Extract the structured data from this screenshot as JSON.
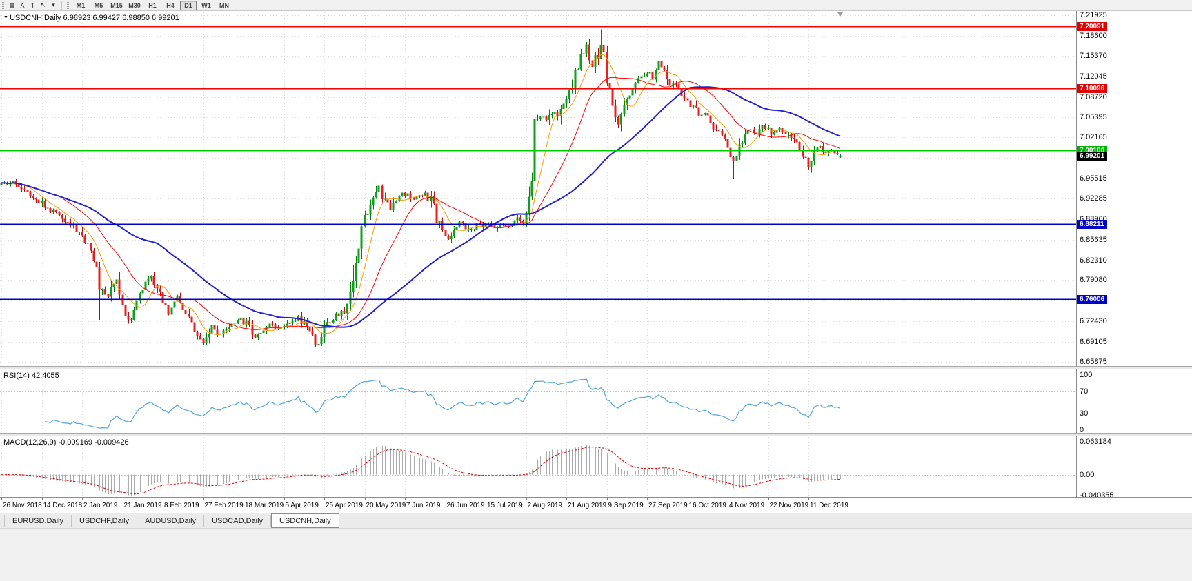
{
  "toolbar": {
    "tool_icons": [
      {
        "name": "charts-grid-icon",
        "glyph": "▦"
      },
      {
        "name": "font-tool-button",
        "glyph": "A"
      },
      {
        "name": "text-tool-button",
        "glyph": "T"
      },
      {
        "name": "cursor-tool-button",
        "glyph": "↖"
      },
      {
        "name": "tool-dropdown-icon",
        "glyph": "▾"
      }
    ],
    "timeframes": [
      "M1",
      "M5",
      "M15",
      "M30",
      "H1",
      "H4",
      "D1",
      "W1",
      "MN"
    ],
    "active_timeframe": "D1"
  },
  "chart": {
    "dropdown_glyph": "▼",
    "header": "USDCNH,Daily 6.98923 6.99427 6.98850 6.99201"
  },
  "rsi_panel": {
    "display": "RSI(14) 42.4055"
  },
  "macd_panel": {
    "display": "MACD(12,26,9) -0.009169 -0.009426"
  },
  "tabs": {
    "items": [
      {
        "label": "EURUSD,Daily",
        "active": false
      },
      {
        "label": "USDCHF,Daily",
        "active": false
      },
      {
        "label": "AUDUSD,Daily",
        "active": false
      },
      {
        "label": "USDCAD,Daily",
        "active": false
      },
      {
        "label": "USDCNH,Daily",
        "active": true
      }
    ]
  },
  "chart_data": {
    "type": "candlestick",
    "symbol": "USDCNH",
    "timeframe": "Daily",
    "current_ohlc": {
      "open": 6.98923,
      "high": 6.99427,
      "low": 6.9885,
      "close": 6.99201
    },
    "bars": 292,
    "price_range": [
      6.65875,
      7.21925
    ],
    "price_axis_labels": [
      "7.21925",
      "7.18600",
      "7.15370",
      "7.12045",
      "7.08720",
      "7.05395",
      "7.02165",
      "6.98840",
      "6.95515",
      "6.92285",
      "6.88960",
      "6.85635",
      "6.82310",
      "6.79080",
      "6.75755",
      "6.72430",
      "6.69105",
      "6.65875"
    ],
    "date_labels": [
      "26 Nov 2018",
      "14 Dec 2018",
      "2 Jan 2019",
      "21 Jan 2019",
      "8 Feb 2019",
      "27 Feb 2019",
      "18 Mar 2019",
      "5 Apr 2019",
      "25 Apr 2019",
      "20 May 2019",
      "7 Jun 2019",
      "26 Jun 2019",
      "15 Jul 2019",
      "2 Aug 2019",
      "21 Aug 2019",
      "9 Sep 2019",
      "27 Sep 2019",
      "16 Oct 2019",
      "4 Nov 2019",
      "22 Nov 2019",
      "11 Dec 2019"
    ],
    "horizontal_levels": [
      {
        "label": "7.20091",
        "price": 7.20091,
        "color": "#FF0000",
        "badge": "#E00000",
        "current": false
      },
      {
        "label": "7.10096",
        "price": 7.10096,
        "color": "#FF0000",
        "badge": "#E00000",
        "current": false
      },
      {
        "label": "7.00100",
        "price": 7.001,
        "color": "#00CC00",
        "badge": "#00B000",
        "current": false
      },
      {
        "label": "6.99201",
        "price": 6.99201,
        "color": "#BDBDBD",
        "badge": "#000000",
        "current": true
      },
      {
        "label": "6.88211",
        "price": 6.88211,
        "color": "#0000CC",
        "badge": "#0000CC",
        "current": false
      },
      {
        "label": "6.76006",
        "price": 6.76006,
        "color": "#0000CC",
        "badge": "#0000CC",
        "current": false
      }
    ],
    "candle_colors": {
      "up_fill": "#0EA01A",
      "up_stroke": "#067B10",
      "down_fill": "#EA1F1F",
      "down_stroke": "#B01010"
    },
    "moving_averages": [
      {
        "period": 8,
        "color": "#FF9900",
        "width": 1
      },
      {
        "period": 21,
        "color": "#FF0000",
        "width": 1
      },
      {
        "period": 55,
        "color": "#2121CC",
        "width": 2
      }
    ],
    "close_keypoints": [
      [
        0,
        6.945
      ],
      [
        5,
        6.948
      ],
      [
        8,
        6.938
      ],
      [
        12,
        6.925
      ],
      [
        16,
        6.905
      ],
      [
        20,
        6.898
      ],
      [
        24,
        6.882
      ],
      [
        28,
        6.862
      ],
      [
        31,
        6.845
      ],
      [
        34,
        6.782
      ],
      [
        37,
        6.765
      ],
      [
        40,
        6.792
      ],
      [
        43,
        6.738
      ],
      [
        45,
        6.728
      ],
      [
        48,
        6.772
      ],
      [
        52,
        6.795
      ],
      [
        55,
        6.768
      ],
      [
        58,
        6.735
      ],
      [
        61,
        6.768
      ],
      [
        64,
        6.74
      ],
      [
        67,
        6.702
      ],
      [
        70,
        6.688
      ],
      [
        73,
        6.715
      ],
      [
        76,
        6.7
      ],
      [
        79,
        6.714
      ],
      [
        82,
        6.728
      ],
      [
        85,
        6.72
      ],
      [
        88,
        6.7
      ],
      [
        91,
        6.713
      ],
      [
        94,
        6.719
      ],
      [
        97,
        6.713
      ],
      [
        100,
        6.723
      ],
      [
        103,
        6.731
      ],
      [
        106,
        6.714
      ],
      [
        109,
        6.687
      ],
      [
        111,
        6.702
      ],
      [
        113,
        6.72
      ],
      [
        116,
        6.733
      ],
      [
        119,
        6.742
      ],
      [
        121,
        6.768
      ],
      [
        123,
        6.828
      ],
      [
        125,
        6.882
      ],
      [
        127,
        6.905
      ],
      [
        129,
        6.922
      ],
      [
        131,
        6.94
      ],
      [
        133,
        6.918
      ],
      [
        135,
        6.905
      ],
      [
        137,
        6.923
      ],
      [
        139,
        6.933
      ],
      [
        141,
        6.927
      ],
      [
        143,
        6.919
      ],
      [
        145,
        6.929
      ],
      [
        147,
        6.933
      ],
      [
        149,
        6.918
      ],
      [
        151,
        6.893
      ],
      [
        153,
        6.873
      ],
      [
        155,
        6.858
      ],
      [
        157,
        6.874
      ],
      [
        159,
        6.884
      ],
      [
        161,
        6.878
      ],
      [
        163,
        6.87
      ],
      [
        165,
        6.88
      ],
      [
        167,
        6.876
      ],
      [
        169,
        6.882
      ],
      [
        171,
        6.877
      ],
      [
        173,
        6.882
      ],
      [
        175,
        6.877
      ],
      [
        177,
        6.884
      ],
      [
        179,
        6.889
      ],
      [
        181,
        6.886
      ],
      [
        183,
        6.905
      ],
      [
        185,
        7.048
      ],
      [
        187,
        7.058
      ],
      [
        189,
        7.046
      ],
      [
        191,
        7.062
      ],
      [
        193,
        7.056
      ],
      [
        195,
        7.082
      ],
      [
        197,
        7.095
      ],
      [
        199,
        7.128
      ],
      [
        201,
        7.152
      ],
      [
        203,
        7.168
      ],
      [
        205,
        7.14
      ],
      [
        207,
        7.158
      ],
      [
        208,
        7.175
      ],
      [
        210,
        7.12
      ],
      [
        212,
        7.06
      ],
      [
        214,
        7.042
      ],
      [
        216,
        7.068
      ],
      [
        218,
        7.092
      ],
      [
        220,
        7.105
      ],
      [
        222,
        7.118
      ],
      [
        224,
        7.128
      ],
      [
        226,
        7.12
      ],
      [
        228,
        7.142
      ],
      [
        230,
        7.128
      ],
      [
        232,
        7.108
      ],
      [
        234,
        7.112
      ],
      [
        236,
        7.092
      ],
      [
        238,
        7.082
      ],
      [
        240,
        7.072
      ],
      [
        242,
        7.058
      ],
      [
        244,
        7.062
      ],
      [
        246,
        7.042
      ],
      [
        248,
        7.032
      ],
      [
        250,
        7.022
      ],
      [
        252,
        7.012
      ],
      [
        254,
        6.982
      ],
      [
        256,
        7.002
      ],
      [
        258,
        7.022
      ],
      [
        260,
        7.035
      ],
      [
        262,
        7.028
      ],
      [
        264,
        7.038
      ],
      [
        266,
        7.032
      ],
      [
        268,
        7.028
      ],
      [
        270,
        7.035
      ],
      [
        272,
        7.03
      ],
      [
        274,
        7.022
      ],
      [
        276,
        7.012
      ],
      [
        278,
        6.988
      ],
      [
        280,
        6.978
      ],
      [
        282,
        6.998
      ],
      [
        284,
        7.005
      ],
      [
        286,
        6.998
      ],
      [
        288,
        7.002
      ],
      [
        290,
        6.996
      ],
      [
        291,
        6.992
      ]
    ],
    "spikes": [
      {
        "bar": 34,
        "low": 6.726
      },
      {
        "bar": 208,
        "high": 7.1965
      },
      {
        "bar": 254,
        "low": 6.955
      },
      {
        "bar": 279,
        "low": 6.931
      }
    ],
    "rsi": {
      "period": 14,
      "value": 42.4055,
      "color": "#4FA3E3",
      "axis_labels": [
        "100",
        "70",
        "30",
        "0"
      ],
      "levels": [
        70,
        30
      ]
    },
    "macd": {
      "fast": 12,
      "slow": 26,
      "signal": 9,
      "value": -0.009169,
      "signal_value": -0.009426,
      "axis_labels": [
        "0.063184",
        "0.00",
        "-0.040355"
      ],
      "histogram_color": "#ABABAB",
      "signal_color": "#E00000"
    }
  }
}
